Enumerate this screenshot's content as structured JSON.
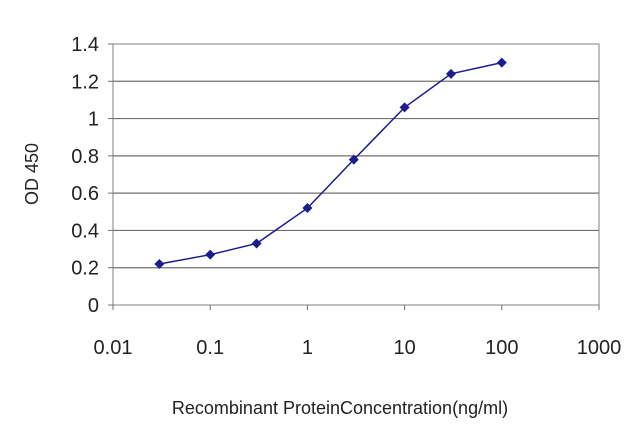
{
  "chart_data": {
    "type": "line",
    "title": "",
    "xlabel": "Recombinant ProteinConcentration(ng/ml)",
    "ylabel": "OD 450",
    "x_scale": "log",
    "xlim": [
      0.01,
      1000
    ],
    "ylim": [
      0,
      1.4
    ],
    "x_ticks": [
      "0.01",
      "0.1",
      "1",
      "10",
      "100",
      "1000"
    ],
    "y_ticks": [
      "0",
      "0.2",
      "0.4",
      "0.6",
      "0.8",
      "1",
      "1.2",
      "1.4"
    ],
    "grid": "horizontal",
    "legend": "none",
    "series": [
      {
        "color": "#1c1c8c",
        "x": [
          0.03,
          0.1,
          0.3,
          1,
          3,
          10,
          30,
          100
        ],
        "y": [
          0.22,
          0.27,
          0.33,
          0.52,
          0.78,
          1.06,
          1.24,
          1.3
        ]
      }
    ]
  }
}
